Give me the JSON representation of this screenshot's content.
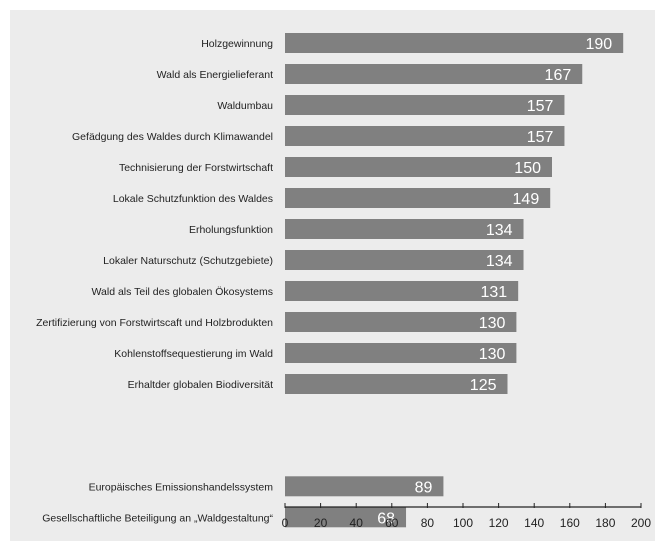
{
  "colors": {
    "background": "#ececec",
    "bar": "#808080",
    "value_label": "#ffffff",
    "text": "#222222",
    "axis": "#222222"
  },
  "chart_data": {
    "type": "bar",
    "orientation": "horizontal",
    "title": "",
    "xlabel": "",
    "ylabel": "",
    "xlim": [
      0,
      200
    ],
    "xticks": [
      0,
      20,
      40,
      60,
      80,
      100,
      120,
      140,
      160,
      180,
      200
    ],
    "grid": false,
    "legend": "none",
    "categories": [
      "Holzgewinnung",
      "Wald als Energielieferant",
      "Waldumbau",
      "Gefädgung des Waldes durch Klimawandel",
      "Technisierung der Forstwirtschaft",
      "Lokale Schutzfunktion des Waldes",
      "Erholungsfunktion",
      "Lokaler Naturschutz (Schutzgebiete)",
      "Wald als Teil des globalen Ökosystems",
      "Zertifizierung von Forstwirtscaft und Holzbrodukten",
      "Kohlenstoffsequestierung im Wald",
      "Erhaltder globalen Biodiversität",
      "Europäisches Emissionshandelssystem",
      "Gesellschaftliche Beteiligung an „Waldgestaltung“"
    ],
    "values": [
      190,
      167,
      157,
      157,
      150,
      149,
      134,
      134,
      131,
      130,
      130,
      125,
      89,
      68
    ]
  }
}
